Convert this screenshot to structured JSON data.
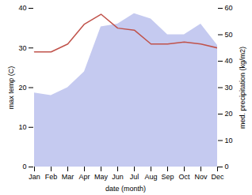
{
  "chart_data": {
    "type": "line",
    "categories": [
      "Jan",
      "Feb",
      "Mar",
      "Apr",
      "May",
      "Jun",
      "Jul",
      "Aug",
      "Sep",
      "Oct",
      "Nov",
      "Dec"
    ],
    "xlabel": "date (month)",
    "ylabel": "max temp (C)",
    "y2label": "med. precipitation (kg/m2)",
    "ylim": [
      0,
      40
    ],
    "yticks": [
      0,
      10,
      20,
      30,
      40
    ],
    "y2lim": [
      0,
      60
    ],
    "y2ticks": [
      0,
      10,
      20,
      30,
      40,
      50,
      60
    ],
    "grid": false,
    "series": [
      {
        "type": "area",
        "axis": "y2",
        "color": "#c5caf0",
        "values": [
          28,
          27,
          30,
          36,
          53,
          54,
          58,
          56,
          50,
          50,
          54,
          46
        ]
      },
      {
        "type": "line",
        "color": "#c0524a",
        "values": [
          29,
          29,
          31,
          36,
          38.5,
          35,
          34.5,
          31,
          31,
          31.5,
          31,
          30
        ]
      }
    ]
  }
}
